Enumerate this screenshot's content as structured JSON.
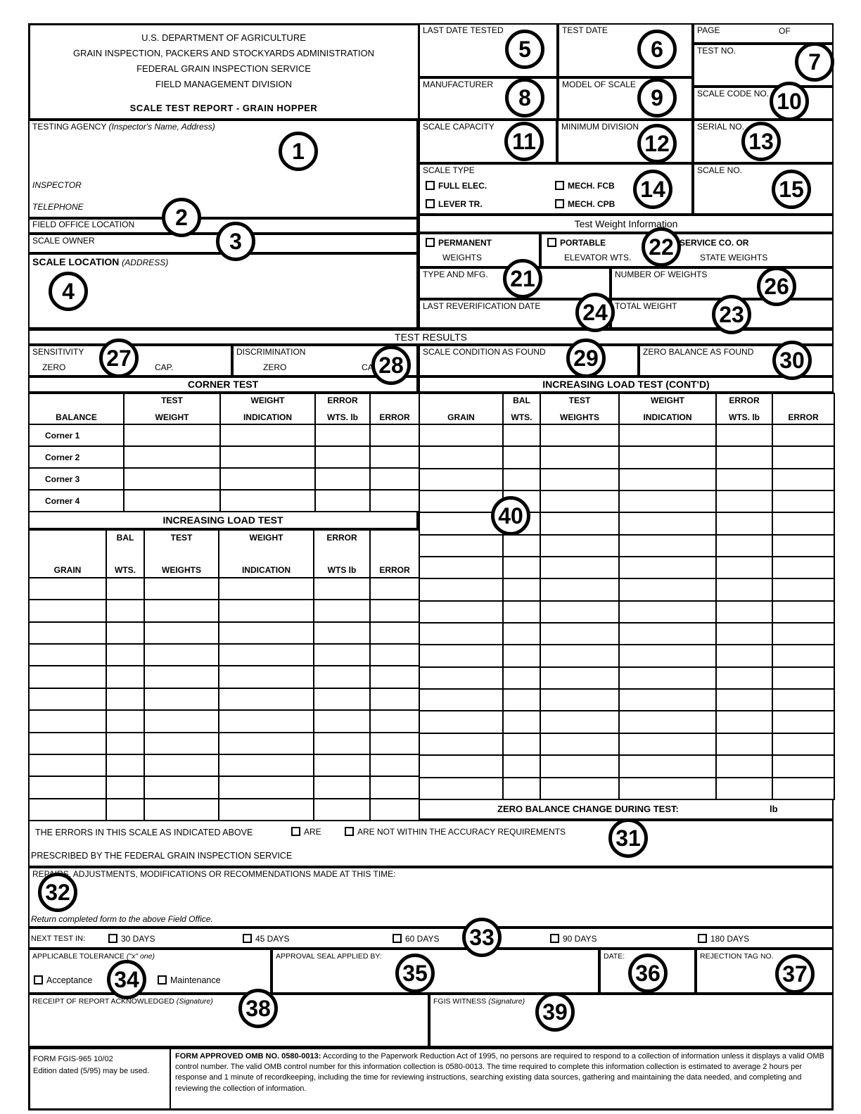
{
  "agency": {
    "line1": "U.S. DEPARTMENT OF AGRICULTURE",
    "line2": "GRAIN INSPECTION, PACKERS AND STOCKYARDS ADMINISTRATION",
    "line3": "FEDERAL GRAIN INSPECTION SERVICE",
    "line4": "FIELD MANAGEMENT DIVISION",
    "form_title": "SCALE TEST REPORT -  GRAIN HOPPER"
  },
  "fields": {
    "testing_agency": "TESTING AGENCY",
    "testing_agency_hint": "(Inspector's Name, Address)",
    "inspector": "INSPECTOR",
    "telephone": "TELEPHONE",
    "field_office_location": "FIELD OFFICE LOCATION",
    "scale_owner": "SCALE OWNER",
    "scale_location": "SCALE LOCATION",
    "scale_location_hint": "(ADDRESS)",
    "last_date_tested": "LAST DATE TESTED",
    "test_date": "TEST DATE",
    "page": "PAGE",
    "of": "OF",
    "test_no": "TEST NO.",
    "manufacturer": "MANUFACTURER",
    "model_of_scale": "MODEL OF SCALE",
    "scale_code_no": "SCALE CODE NO.",
    "scale_capacity": "SCALE CAPACITY",
    "minimum_division": "MINIMUM DIVISION",
    "serial_no": "SERIAL NO.",
    "scale_type": "SCALE TYPE",
    "scale_type_options": [
      "FULL ELEC.",
      "LEVER TR.",
      "MECH. FCB",
      "MECH. CPB"
    ],
    "scale_no": "SCALE NO."
  },
  "test_weight_info": {
    "title": "Test Weight Information",
    "permanent_1": "PERMANENT",
    "permanent_2": "WEIGHTS",
    "portable_1": "PORTABLE",
    "portable_2": "ELEVATOR WTS.",
    "service_1": "SERVICE CO. OR",
    "service_2": "STATE WEIGHTS",
    "type_and_mfg": "TYPE AND MFG.",
    "number_of_weights": "NUMBER OF WEIGHTS",
    "last_reverification_date": "LAST REVERIFICATION DATE",
    "total_weight": "TOTAL WEIGHT"
  },
  "test_results": {
    "title": "TEST RESULTS",
    "sensitivity": "SENSITIVITY",
    "discrimination": "DISCRIMINATION",
    "zero": "ZERO",
    "cap": "CAP.",
    "scale_condition_as_found": "SCALE CONDITION AS FOUND",
    "zero_balance_as_found": "ZERO BALANCE AS FOUND"
  },
  "corner_test": {
    "title": "CORNER TEST",
    "col_balance": "BALANCE",
    "col_test_1": "TEST",
    "col_test_2": "WEIGHT",
    "col_wi_1": "WEIGHT",
    "col_wi_2": "INDICATION",
    "col_err_1": "ERROR",
    "col_err_2": "WTS. lb",
    "col_error": "ERROR",
    "rows": [
      "Corner 1",
      "Corner 2",
      "Corner 3",
      "Corner 4"
    ]
  },
  "ilt": {
    "title": "INCREASING LOAD TEST",
    "col_grain": "GRAIN",
    "col_bal_1": "BAL",
    "col_bal_2": "WTS.",
    "col_tw_1": "TEST",
    "col_tw_2": "WEIGHTS",
    "col_wi_1": "WEIGHT",
    "col_wi_2": "INDICATION",
    "col_err_1": "ERROR",
    "col_err_2": "WTS lb",
    "col_error": "ERROR"
  },
  "ilt_contd": {
    "title": "INCREASING LOAD TEST (CONT'D)",
    "col_grain": "GRAIN",
    "col_bal_1": "BAL",
    "col_bal_2": "WTS.",
    "col_tw_1": "TEST",
    "col_tw_2": "WEIGHTS",
    "col_wi_1": "WEIGHT",
    "col_wi_2": "INDICATION",
    "col_err_1": "ERROR",
    "col_err_2": "WTS. lb",
    "col_error": "ERROR"
  },
  "zero_balance_change": {
    "label": "ZERO BALANCE CHANGE DURING TEST:",
    "unit": "lb"
  },
  "errors_statement": {
    "prefix": "THE ERRORS IN THIS SCALE AS INDICATED ABOVE",
    "are": "ARE",
    "are_not": "ARE NOT WITHIN THE ACCURACY REQUIREMENTS",
    "line2": "PRESCRIBED BY THE FEDERAL GRAIN INSPECTION SERVICE"
  },
  "repairs": {
    "label": "REPAIRS, ADJUSTMENTS, MODIFICATIONS OR RECOMMENDATIONS MADE AT THIS TIME:",
    "return_note": "Return completed form to the above Field Office."
  },
  "next_test": {
    "label": "NEXT TEST IN:",
    "options": [
      "30  DAYS",
      "45  DAYS",
      "60  DAYS",
      "90  DAYS",
      "180  DAYS"
    ]
  },
  "tolerance": {
    "label": "APPLICABLE TOLERANCE",
    "hint": "(\"x\" one)",
    "acceptance": "Acceptance",
    "maintenance": "Maintenance"
  },
  "approval": {
    "seal": "APPROVAL SEAL APPLIED BY:",
    "date": "DATE:",
    "rejection_tag_no": "REJECTION TAG NO."
  },
  "signatures": {
    "receipt": "RECEIPT OF REPORT ACKNOWLEDGED",
    "receipt_hint": "(Signature)",
    "witness": "FGIS WITNESS",
    "witness_hint": "(Signature)"
  },
  "footer": {
    "form_id_1": "FORM FGIS-965 10/02",
    "form_id_2": "Edition dated (5/95) may be used.",
    "omb_bold": "FORM APPROVED OMB NO. 0580-0013:",
    "omb_text": "According to the Paperwork Reduction Act of 1995, no persons are required to respond to a collection of information unless it displays a valid OMB control number.  The valid OMB control number for this information collection is 0580-0013.  The time required to complete this information collection is estimated to average 2 hours per response and 1 minute of recordkeeping, including the time for reviewing instructions, searching existing data sources, gathering and maintaining the data needed, and completing and reviewing the collection of information."
  },
  "circles": {
    "n1": "1",
    "n2": "2",
    "n3": "3",
    "n4": "4",
    "n5": "5",
    "n6": "6",
    "n7": "7",
    "n8": "8",
    "n9": "9",
    "n10": "10",
    "n11": "11",
    "n12": "12",
    "n13": "13",
    "n14": "14",
    "n15": "15",
    "n21": "21",
    "n22": "22",
    "n23": "23",
    "n24": "24",
    "n26": "26",
    "n27": "27",
    "n28": "28",
    "n29": "29",
    "n30": "30",
    "n31": "31",
    "n32": "32",
    "n33": "33",
    "n34": "34",
    "n35": "35",
    "n36": "36",
    "n37": "37",
    "n38": "38",
    "n39": "39",
    "n40": "40"
  }
}
